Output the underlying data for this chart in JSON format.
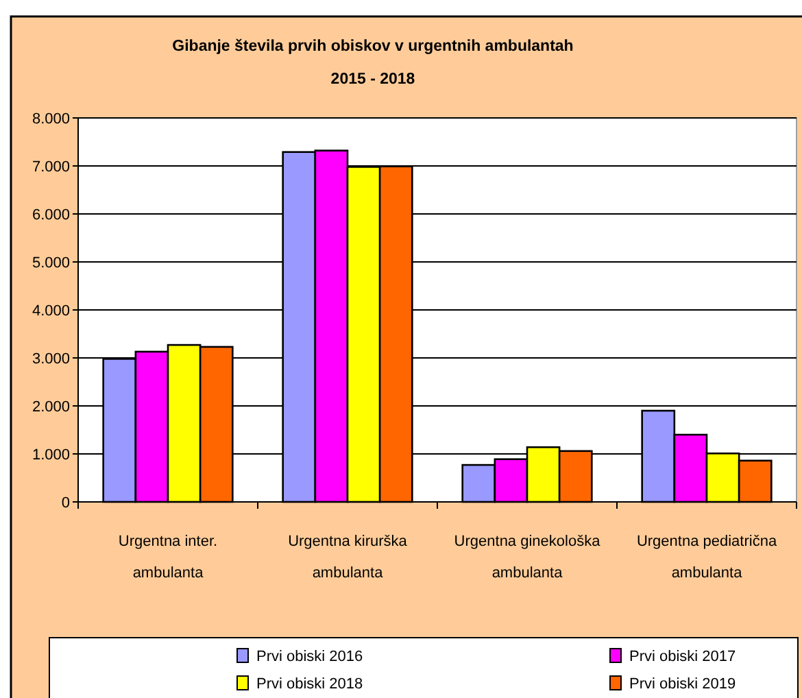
{
  "chart_data": {
    "type": "bar",
    "title": "Gibanje števila prvih obiskov v urgentnih ambulantah",
    "subtitle": "2015 - 2018",
    "categories": [
      "Urgentna inter. ambulanta",
      "Urgentna kirurška ambulanta",
      "Urgentna ginekološka ambulanta",
      "Urgentna pediatrična ambulanta"
    ],
    "series": [
      {
        "name": "Prvi obiski 2016",
        "color": "#9999ff",
        "values": [
          2980,
          7290,
          770,
          1900
        ]
      },
      {
        "name": "Prvi obiski 2017",
        "color": "#ff00ff",
        "values": [
          3130,
          7320,
          890,
          1400
        ]
      },
      {
        "name": "Prvi obiski 2018",
        "color": "#ffff00",
        "values": [
          3270,
          6980,
          1140,
          1010
        ]
      },
      {
        "name": "Prvi obiski 2019",
        "color": "#ff6600",
        "values": [
          3230,
          6990,
          1060,
          860
        ]
      }
    ],
    "ylim": [
      0,
      8000
    ],
    "yticks": [
      0,
      {
        "value": 1000,
        "label": "1.000"
      },
      {
        "value": 2000,
        "label": "2.000"
      },
      {
        "value": 3000,
        "label": "3.000"
      },
      {
        "value": 4000,
        "label": "4.000"
      },
      {
        "value": 5000,
        "label": "5.000"
      },
      {
        "value": 6000,
        "label": "6.000"
      },
      {
        "value": 7000,
        "label": "7.000"
      },
      {
        "value": 8000,
        "label": "8.000"
      }
    ],
    "grid": "y",
    "legend": "bottom"
  }
}
